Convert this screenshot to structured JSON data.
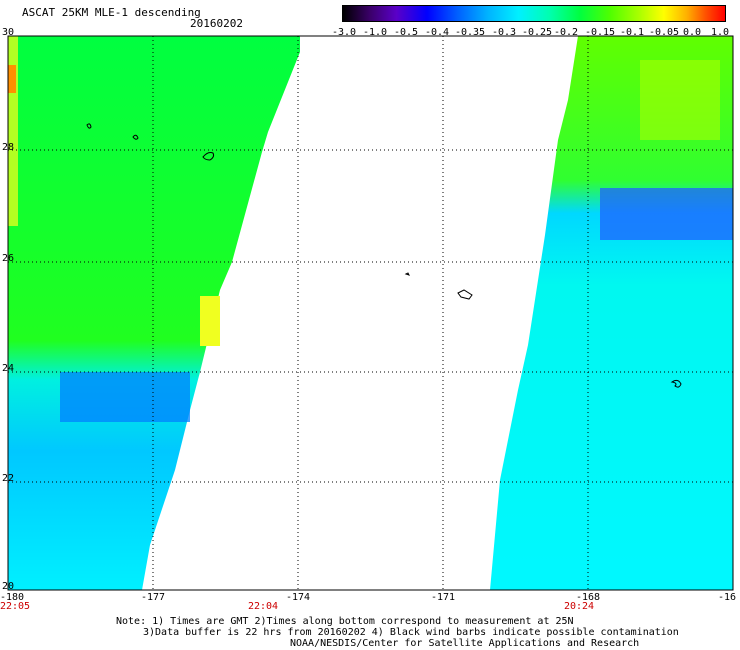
{
  "title": "ASCAT 25KM MLE-1 descending",
  "date": "20160202",
  "colorbar": {
    "ticks": [
      "-3.0",
      "-1.0",
      "-0.5",
      "-0.4",
      "-0.35",
      "-0.3",
      "-0.25",
      "-0.2",
      "-0.15",
      "-0.1",
      "-0.05",
      "0.0",
      "1.0"
    ],
    "colors": [
      "#000000",
      "#5a00c8",
      "#0000ff",
      "#00b4ff",
      "#00f0ff",
      "#00ff40",
      "#b0ff00",
      "#ffff00",
      "#ff5000",
      "#ff0000"
    ]
  },
  "lat_ticks": [
    "30",
    "28",
    "26",
    "24",
    "22",
    "20"
  ],
  "lon_ticks": [
    "-180",
    "-177",
    "-174",
    "-171",
    "-168",
    "-16"
  ],
  "time_ticks": [
    "22:05",
    "22:04",
    "20:24"
  ],
  "notes": [
    "Note: 1) Times are GMT 2)Times along bottom correspond to measurement at 25N",
    "3)Data buffer is 22 hrs from 20160202 4) Black wind barbs indicate possible contamination",
    "NOAA/NESDIS/Center for Satellite Applications and Research"
  ]
}
